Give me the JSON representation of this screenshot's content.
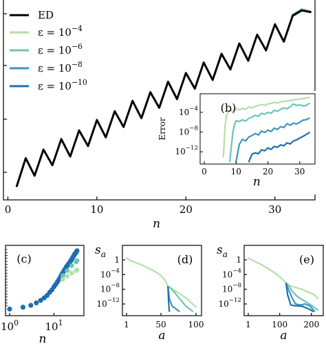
{
  "chart_data": [
    {
      "type": "line",
      "xlabel": "n",
      "xlim": [
        -0.5,
        34.5
      ],
      "xticks": [
        0,
        10,
        20,
        30
      ],
      "series": [
        {
          "name": "ED",
          "color": "#000000",
          "x": [
            1,
            2,
            3,
            4,
            5,
            6,
            7,
            8,
            9,
            10,
            11,
            12,
            13,
            14,
            15,
            16,
            17,
            18,
            19,
            20,
            21,
            22,
            23,
            24,
            25,
            26,
            27,
            28,
            29,
            30,
            31,
            32,
            33,
            34
          ],
          "y": [
            0.9,
            2.5,
            1.5,
            3.0,
            2.1,
            3.6,
            2.6,
            4.1,
            3.2,
            4.7,
            3.7,
            5.2,
            4.3,
            5.8,
            4.8,
            6.3,
            5.4,
            6.9,
            5.9,
            7.4,
            6.5,
            8.0,
            7.0,
            8.5,
            7.6,
            9.1,
            8.1,
            9.6,
            8.7,
            10.2,
            9.2,
            10.7,
            11.0,
            10.9
          ]
        },
        {
          "name": "ε = 10^{−4}",
          "color": "#b3e0a6",
          "x": [
            32,
            33,
            34
          ],
          "y": [
            10.75,
            11.08,
            10.95
          ]
        },
        {
          "name": "ε = 10^{−6}",
          "color": "#6bc4b4",
          "x": [
            32,
            33
          ],
          "y": [
            10.72,
            11.03
          ]
        },
        {
          "name": "ε = 10^{−8}",
          "color": "#3b95c4",
          "x": [
            32,
            33
          ],
          "y": [
            10.7,
            11.0
          ]
        },
        {
          "name": "ε = 10^{−10}",
          "color": "#1f6eb0",
          "x": [
            32,
            33
          ],
          "y": [
            10.68,
            10.98
          ]
        }
      ],
      "legend": {
        "placement": "top-left",
        "labels": [
          "ED",
          "ε = 10",
          "ε = 10",
          "ε = 10",
          "ε = 10"
        ],
        "exponents": [
          "",
          "−4",
          "−6",
          "−8",
          "−10"
        ]
      }
    },
    {
      "type": "line",
      "panel": "(b)",
      "xlabel": "n",
      "ylabel": "Error",
      "xticks": [
        0,
        10,
        20,
        30
      ],
      "yticks": [
        "10",
        "10",
        "10"
      ],
      "ytick_exponents": [
        "−12",
        "−8",
        "−4"
      ],
      "ylog": true,
      "series": [
        {
          "name": "ε = 10^{−4}",
          "color": "#b3e0a6",
          "x": [
            6,
            6.5,
            7,
            8,
            9,
            10,
            11,
            12,
            13,
            14,
            15,
            16,
            17,
            18,
            19,
            20,
            21,
            22,
            23,
            24,
            25,
            26,
            27,
            28,
            29,
            30,
            31,
            32,
            33
          ],
          "y": [
            -13,
            -7,
            -4.5,
            -3.6,
            -3.8,
            -3.2,
            -3.5,
            -3.2,
            -3.4,
            -2.9,
            -3.1,
            -2.8,
            -2.6,
            -2.4,
            -2.6,
            -2.3,
            -2.2,
            -2.0,
            -2.1,
            -1.9,
            -1.8,
            -1.7,
            -1.6,
            -1.5,
            -1.4,
            -1.3,
            -1.2,
            -1.1,
            -1.0
          ]
        },
        {
          "name": "ε = 10^{−6}",
          "color": "#6bc4b4",
          "x": [
            8,
            9,
            9.5,
            10,
            11,
            12,
            13,
            14,
            15,
            16,
            17,
            18,
            19,
            20,
            21,
            22,
            23,
            24,
            25,
            26,
            27,
            28,
            29,
            30,
            31,
            32,
            33
          ],
          "y": [
            -14,
            -8,
            -6.5,
            -5.7,
            -5.9,
            -5.5,
            -5.8,
            -5.2,
            -5.0,
            -4.6,
            -4.8,
            -4.2,
            -4.4,
            -4.0,
            -4.2,
            -3.6,
            -3.8,
            -3.4,
            -3.1,
            -3.3,
            -2.9,
            -2.3,
            -2.6,
            -2.5,
            -2.7,
            -2.6,
            -2.2
          ]
        },
        {
          "name": "ε = 10^{−8}",
          "color": "#3b95c4",
          "x": [
            10,
            11,
            12,
            13,
            14,
            15,
            16,
            17,
            18,
            19,
            20,
            21,
            22,
            23,
            24,
            25,
            26,
            27,
            28,
            29,
            30,
            31,
            32,
            33
          ],
          "y": [
            -14,
            -10.5,
            -9.5,
            -9.8,
            -9.0,
            -8.7,
            -8.3,
            -8.6,
            -7.8,
            -8.1,
            -7.6,
            -7.9,
            -7.2,
            -7.5,
            -6.9,
            -7.1,
            -6.3,
            -6.6,
            -6.2,
            -6.4,
            -6.0,
            -5.6,
            -5.5,
            -5.2
          ]
        },
        {
          "name": "ε = 10^{−10}",
          "color": "#1f6eb0",
          "x": [
            14,
            15,
            16,
            17,
            18,
            19,
            20,
            21,
            22,
            23,
            24,
            25,
            26,
            27,
            28,
            29,
            30,
            31,
            32,
            33
          ],
          "y": [
            -14,
            -12.5,
            -12.2,
            -12.4,
            -11.6,
            -11.8,
            -11.2,
            -11.5,
            -10.9,
            -11.1,
            -10.6,
            -10.8,
            -10.2,
            -10.4,
            -9.8,
            -9.6,
            -9.2,
            -8.9,
            -8.5,
            -8.1
          ]
        }
      ]
    },
    {
      "type": "scatter",
      "panel": "(c)",
      "xlabel": "n",
      "xticks": [
        "10",
        "10"
      ],
      "xtick_exponents": [
        "0",
        "1"
      ],
      "xlog": true,
      "series": [
        {
          "name": "",
          "color": "#1f6eb0",
          "x": [
            0.0,
            0.301,
            0.477,
            0.602,
            0.699,
            0.778,
            0.845,
            0.903,
            0.954,
            1.0,
            1.041,
            1.079,
            1.114,
            1.146,
            1.176,
            1.204,
            1.23,
            1.255,
            1.279,
            1.301,
            1.322,
            1.342,
            1.362,
            1.38,
            1.398,
            1.415,
            1.431,
            1.447,
            1.462,
            1.477,
            1.491,
            1.505,
            1.519
          ],
          "y": [
            0.04,
            0.07,
            0.1,
            0.14,
            0.18,
            0.22,
            0.26,
            0.31,
            0.35,
            0.4,
            0.44,
            0.48,
            0.52,
            0.56,
            0.6,
            0.63,
            0.66,
            0.69,
            0.72,
            0.74,
            0.76,
            0.78,
            0.8,
            0.82,
            0.84,
            0.86,
            0.88,
            0.9,
            0.92,
            0.93,
            0.95,
            0.96,
            0.98
          ]
        },
        {
          "name": "",
          "color": "#6bc4b4",
          "x": [
            1.2,
            1.3,
            1.4,
            1.5,
            1.52
          ],
          "y": [
            0.58,
            0.66,
            0.74,
            0.8,
            0.82
          ]
        },
        {
          "name": "",
          "color": "#b3e0a6",
          "x": [
            1.2,
            1.3,
            1.4,
            1.5,
            1.52
          ],
          "y": [
            0.52,
            0.57,
            0.62,
            0.66,
            0.67
          ]
        }
      ]
    },
    {
      "type": "line",
      "panel": "(d)",
      "xlabel": "a",
      "ylabel": "s",
      "ylabel_sub": "a",
      "xticks": [
        1,
        50,
        100
      ],
      "yticks": [
        "1",
        "10",
        "10",
        "10"
      ],
      "ytick_exponents": [
        "",
        "−4",
        "−8",
        "−12"
      ],
      "ylog": true,
      "series": [
        {
          "name": "ε = 10^{−4}",
          "color": "#b3e0a6",
          "x": [
            1,
            5,
            10,
            15,
            20,
            25,
            30,
            35,
            40,
            45,
            50,
            55,
            60,
            65,
            70,
            75,
            80,
            85,
            90,
            95,
            100
          ],
          "y": [
            0.5,
            0,
            -0.5,
            -0.8,
            -1.2,
            -1.6,
            -2.1,
            -2.6,
            -3.0,
            -3.6,
            -4.3,
            -5.3,
            -7.2,
            -7.8,
            -8.4,
            -9.0,
            -9.6,
            -10.3,
            -11.0,
            -12.0,
            -12.8
          ]
        },
        {
          "name": "ε = 10^{−6}",
          "color": "#6bc4b4",
          "x": [
            60,
            65,
            70,
            75,
            80,
            85,
            90,
            95
          ],
          "y": [
            -7.2,
            -7.9,
            -9.0,
            -10.2,
            -11.3,
            -12.5,
            -13.2,
            -14
          ]
        },
        {
          "name": "ε = 10^{−8}",
          "color": "#3b95c4",
          "x": [
            60,
            62,
            66,
            70,
            76
          ],
          "y": [
            -7.3,
            -10.5,
            -12.6,
            -13.1,
            -14
          ]
        },
        {
          "name": "ε = 10^{−10}",
          "color": "#1f6eb0",
          "x": [
            60,
            61,
            62
          ],
          "y": [
            -7.4,
            -11.5,
            -14
          ]
        }
      ]
    },
    {
      "type": "line",
      "panel": "(e)",
      "xlabel": "a",
      "ylabel": "s",
      "ylabel_sub": "a",
      "xticks": [
        1,
        100,
        200
      ],
      "yticks": [
        "1",
        "10",
        "10",
        "10"
      ],
      "ytick_exponents": [
        "",
        "−4",
        "−8",
        "−12"
      ],
      "ylog": true,
      "series": [
        {
          "name": "ε = 10^{−4}",
          "color": "#b3e0a6",
          "x": [
            1,
            10,
            20,
            40,
            60,
            80,
            100,
            120,
            130,
            150,
            170,
            190,
            210,
            220
          ],
          "y": [
            0.5,
            0,
            -0.4,
            -1.2,
            -2.2,
            -3.3,
            -4.6,
            -6.3,
            -7.0,
            -7.5,
            -8.0,
            -8.8,
            -9.5,
            -10.5
          ]
        },
        {
          "name": "ε = 10^{−6}",
          "color": "#6bc4b4",
          "x": [
            120,
            130,
            140,
            150,
            160,
            175,
            190,
            200,
            210,
            220
          ],
          "y": [
            -6.3,
            -7.2,
            -8.6,
            -9.5,
            -10.3,
            -11.0,
            -11.8,
            -12.4,
            -13.0,
            -13.6
          ]
        },
        {
          "name": "ε = 10^{−8}",
          "color": "#3b95c4",
          "x": [
            120,
            130,
            140,
            150,
            165,
            180,
            195,
            210
          ],
          "y": [
            -6.4,
            -8.5,
            -10.5,
            -12.0,
            -12.3,
            -12.0,
            -12.5,
            -14
          ]
        },
        {
          "name": "ε = 10^{−10}",
          "color": "#1f6eb0",
          "x": [
            120,
            125,
            135,
            150,
            170,
            190,
            205
          ],
          "y": [
            -6.5,
            -9.5,
            -12.3,
            -12.5,
            -12.6,
            -13.3,
            -14
          ]
        }
      ]
    }
  ]
}
